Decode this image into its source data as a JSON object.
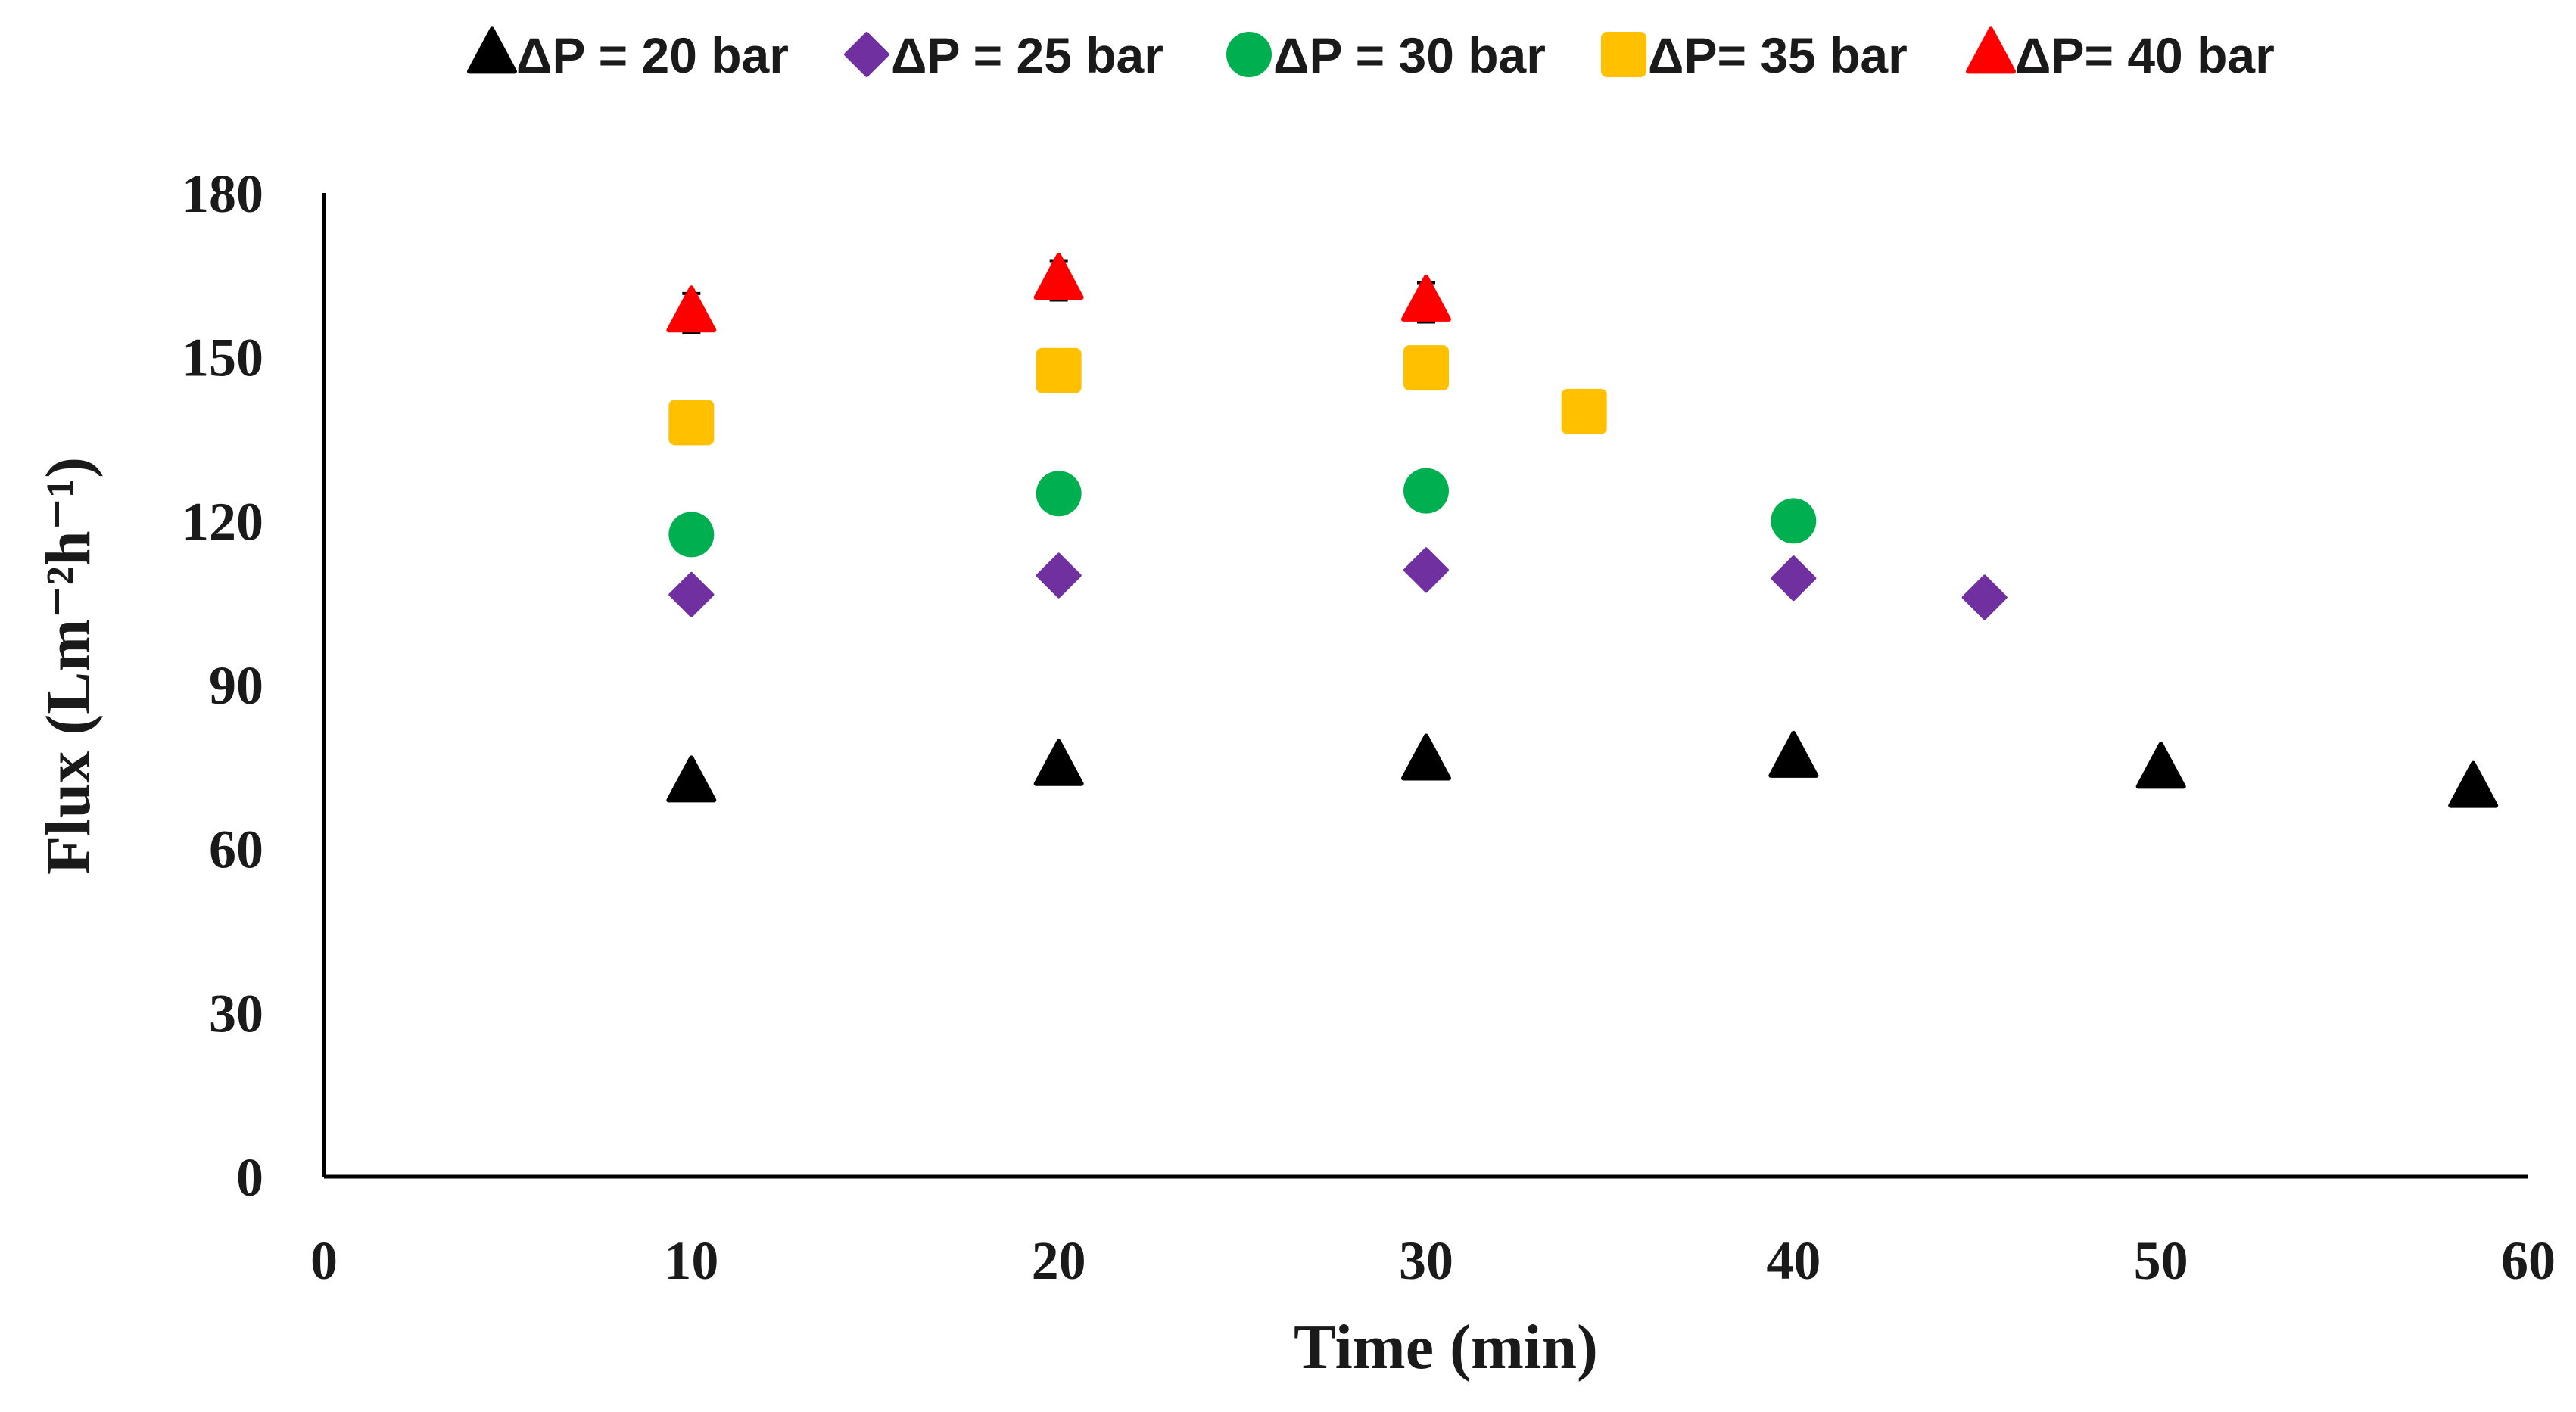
{
  "chart_data": {
    "type": "scatter",
    "title": "",
    "xlabel": "Time (min)",
    "ylabel": "Flux (Lm⁻²h⁻¹)",
    "xlim": [
      0,
      60
    ],
    "ylim": [
      0,
      180
    ],
    "xticks": [
      0,
      10,
      20,
      30,
      40,
      50,
      60
    ],
    "yticks": [
      0,
      30,
      60,
      90,
      120,
      150,
      180
    ],
    "grid": false,
    "legend_position": "top",
    "series": [
      {
        "name": "ΔP = 20 bar",
        "marker": "triangle",
        "color": "#000000",
        "x": [
          10,
          20,
          30,
          40,
          50,
          58.5
        ],
        "y": [
          72,
          75,
          76,
          76.5,
          74.5,
          71
        ]
      },
      {
        "name": "ΔP = 25 bar",
        "marker": "diamond",
        "color": "#7030A0",
        "x": [
          10,
          20,
          30,
          40,
          45.2
        ],
        "y": [
          106.5,
          110,
          111,
          109.5,
          106
        ]
      },
      {
        "name": "ΔP = 30 bar",
        "marker": "circle",
        "color": "#00B050",
        "x": [
          10,
          20,
          30,
          40
        ],
        "y": [
          117.5,
          125,
          125.5,
          120
        ]
      },
      {
        "name": "ΔP= 35 bar",
        "marker": "square",
        "color": "#FFC000",
        "x": [
          10,
          20,
          30,
          34.3
        ],
        "y": [
          138,
          147.5,
          148,
          140
        ]
      },
      {
        "name": "ΔP=  40 bar",
        "marker": "triangle",
        "color": "#FF0000",
        "x": [
          10,
          20,
          30
        ],
        "y": [
          158,
          164,
          160
        ]
      }
    ]
  }
}
